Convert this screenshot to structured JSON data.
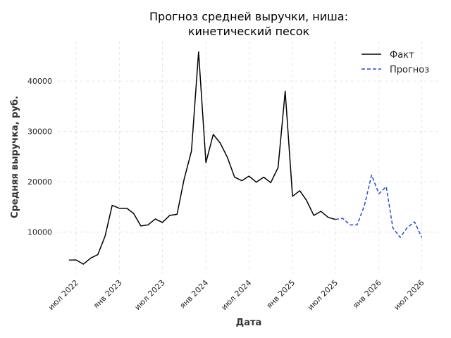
{
  "chart_data": {
    "type": "line",
    "title": [
      "Прогноз средней выручки, ниша:",
      "кинетический песок"
    ],
    "xlabel": "Дата",
    "ylabel": "Средняя выручка, руб.",
    "xlim": [
      "2022-04-15",
      "2026-09-15"
    ],
    "ylim": [
      1800,
      48000
    ],
    "x_ticks": [
      {
        "date": "2022-07-01",
        "label": "июл 2022"
      },
      {
        "date": "2023-01-01",
        "label": "янв 2023"
      },
      {
        "date": "2023-07-01",
        "label": "июл 2023"
      },
      {
        "date": "2024-01-01",
        "label": "янв 2024"
      },
      {
        "date": "2024-07-01",
        "label": "июл 2024"
      },
      {
        "date": "2025-01-01",
        "label": "янв 2025"
      },
      {
        "date": "2025-07-01",
        "label": "июл 2025"
      },
      {
        "date": "2026-01-01",
        "label": "янв 2026"
      },
      {
        "date": "2026-07-01",
        "label": "июл 2026"
      }
    ],
    "y_ticks": [
      {
        "value": 10000,
        "label": "10000"
      },
      {
        "value": 20000,
        "label": "20000"
      },
      {
        "value": 30000,
        "label": "30000"
      },
      {
        "value": 40000,
        "label": "40000"
      }
    ],
    "grid": true,
    "legend_position": "top-right",
    "series": [
      {
        "name": "Факт",
        "style": "solid",
        "color": "#000000",
        "points": [
          [
            "2022-06-01",
            4400
          ],
          [
            "2022-07-01",
            4450
          ],
          [
            "2022-08-01",
            3600
          ],
          [
            "2022-09-01",
            4800
          ],
          [
            "2022-10-01",
            5500
          ],
          [
            "2022-11-01",
            9200
          ],
          [
            "2022-12-01",
            15300
          ],
          [
            "2023-01-01",
            14700
          ],
          [
            "2023-02-01",
            14700
          ],
          [
            "2023-03-01",
            13700
          ],
          [
            "2023-04-01",
            11200
          ],
          [
            "2023-05-01",
            11400
          ],
          [
            "2023-06-01",
            12600
          ],
          [
            "2023-07-01",
            11900
          ],
          [
            "2023-08-01",
            13300
          ],
          [
            "2023-09-01",
            13500
          ],
          [
            "2023-10-01",
            20500
          ],
          [
            "2023-11-01",
            26100
          ],
          [
            "2023-12-01",
            45800
          ],
          [
            "2024-01-01",
            23800
          ],
          [
            "2024-02-01",
            29400
          ],
          [
            "2024-03-01",
            27700
          ],
          [
            "2024-04-01",
            24800
          ],
          [
            "2024-05-01",
            20900
          ],
          [
            "2024-06-01",
            20200
          ],
          [
            "2024-07-01",
            21100
          ],
          [
            "2024-08-01",
            19900
          ],
          [
            "2024-09-01",
            20900
          ],
          [
            "2024-10-01",
            19800
          ],
          [
            "2024-11-01",
            22800
          ],
          [
            "2024-12-01",
            38000
          ],
          [
            "2025-01-01",
            17100
          ],
          [
            "2025-02-01",
            18200
          ],
          [
            "2025-03-01",
            16300
          ],
          [
            "2025-04-01",
            13300
          ],
          [
            "2025-05-01",
            14100
          ],
          [
            "2025-06-01",
            12900
          ],
          [
            "2025-07-01",
            12500
          ]
        ]
      },
      {
        "name": "Прогноз",
        "style": "dashed",
        "color": "#1f4fd1",
        "points": [
          [
            "2025-07-01",
            12500
          ],
          [
            "2025-08-01",
            12700
          ],
          [
            "2025-09-01",
            11400
          ],
          [
            "2025-10-01",
            11400
          ],
          [
            "2025-11-01",
            15300
          ],
          [
            "2025-12-01",
            21300
          ],
          [
            "2026-01-01",
            17600
          ],
          [
            "2026-02-01",
            19000
          ],
          [
            "2026-03-01",
            10800
          ],
          [
            "2026-04-01",
            8900
          ],
          [
            "2026-05-01",
            10900
          ],
          [
            "2026-06-01",
            12000
          ],
          [
            "2026-07-01",
            8900
          ]
        ]
      }
    ]
  }
}
